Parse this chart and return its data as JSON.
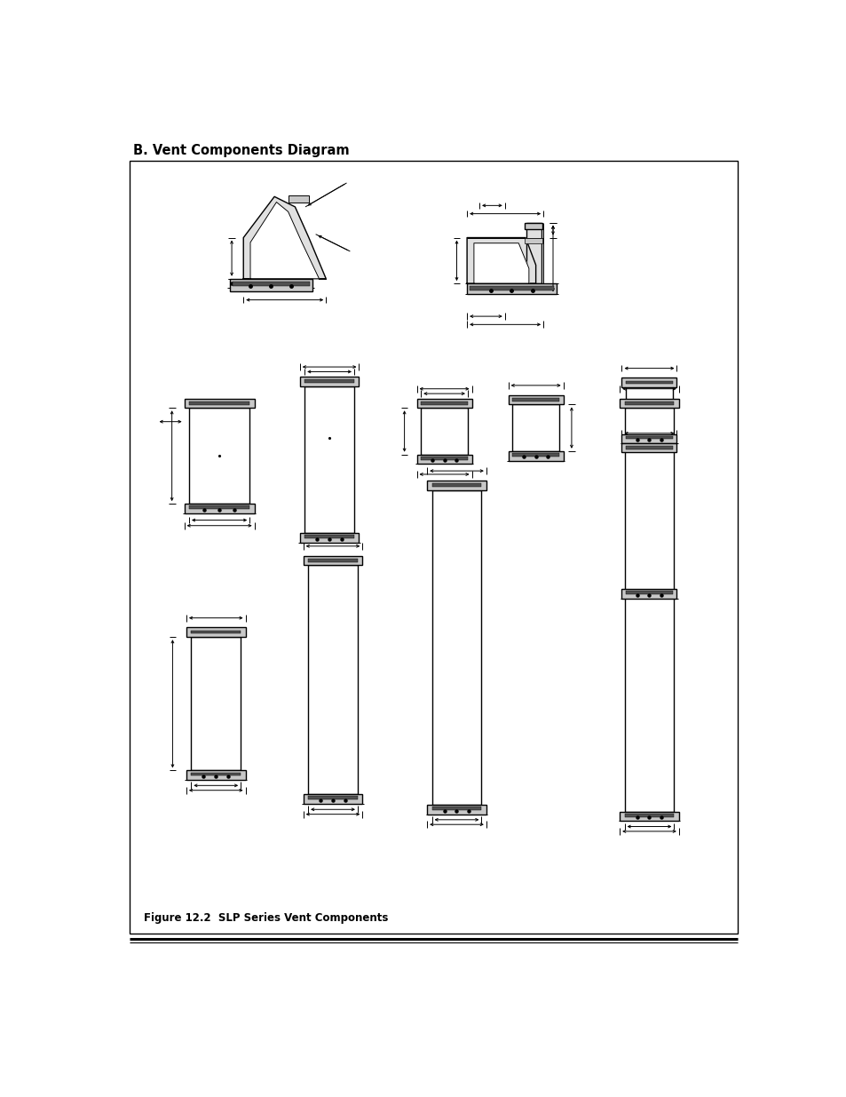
{
  "title": "B. Vent Components Diagram",
  "caption": "Figure 12.2  SLP Series Vent Components",
  "bg_color": "#ffffff",
  "line_color": "#000000",
  "gray_dark": "#505050",
  "gray_med": "#909090",
  "gray_light": "#c8c8c8",
  "gray_lighter": "#e0e0e0",
  "title_fontsize": 10.5,
  "caption_fontsize": 8.5
}
